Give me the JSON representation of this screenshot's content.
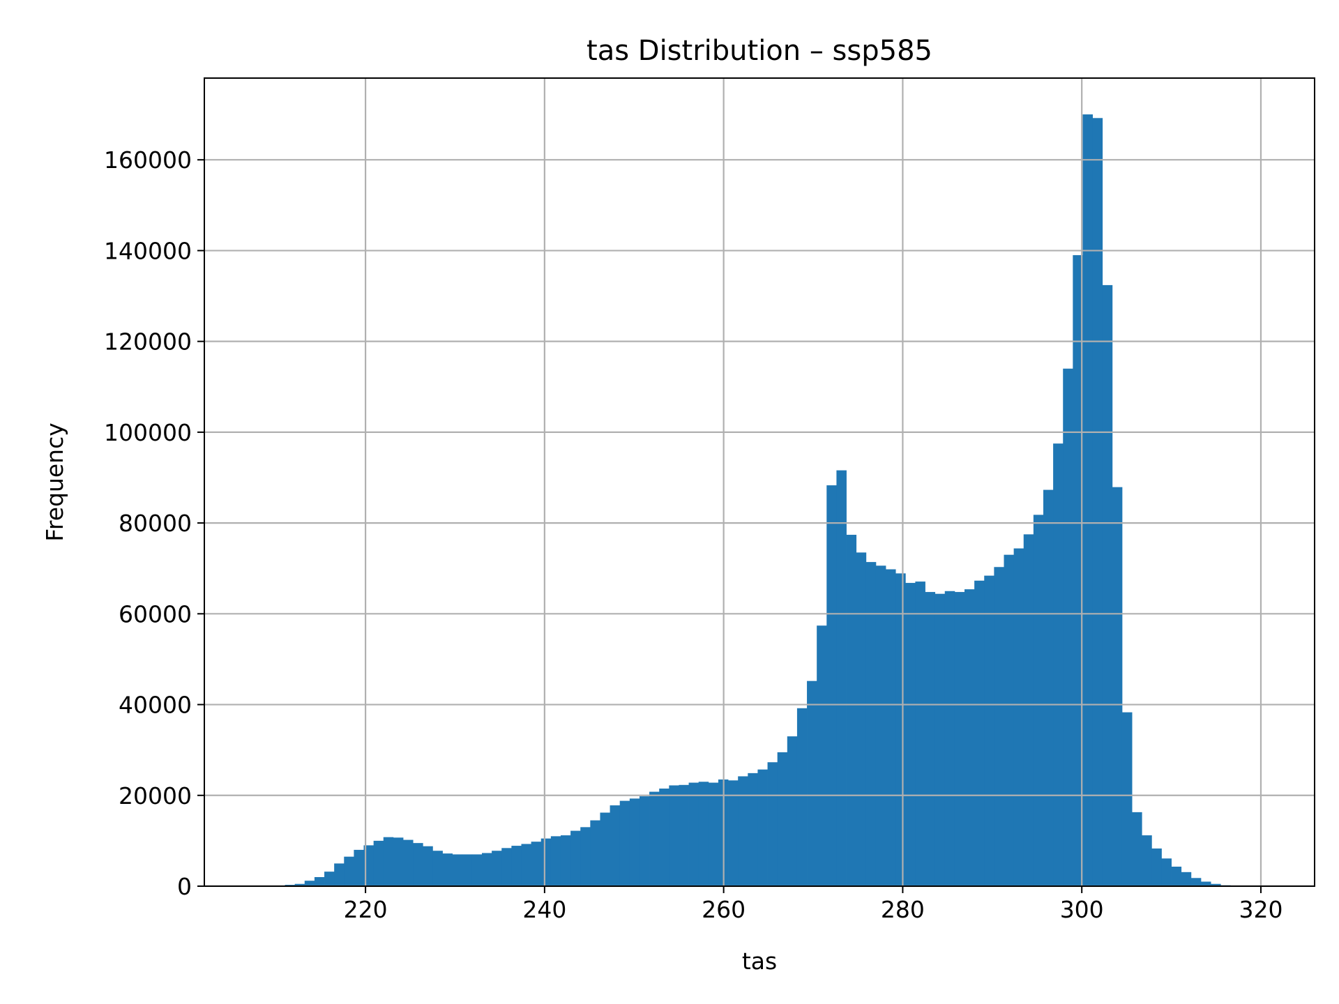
{
  "chart_data": {
    "type": "bar",
    "title": "tas Distribution – ssp585",
    "xlabel": "tas",
    "ylabel": "Frequency",
    "xlim": [
      202,
      326
    ],
    "ylim": [
      0,
      178000
    ],
    "xticks": [
      220,
      240,
      260,
      280,
      300,
      320
    ],
    "yticks": [
      0,
      20000,
      40000,
      60000,
      80000,
      100000,
      120000,
      140000,
      160000
    ],
    "grid": true,
    "bar_color": "#1f77b4",
    "bin_start": 211.0,
    "bin_width": 1.1,
    "values": [
      300,
      500,
      1200,
      2000,
      3200,
      5000,
      6500,
      8000,
      9000,
      10000,
      10800,
      10700,
      10200,
      9500,
      8800,
      7800,
      7200,
      7000,
      7000,
      7000,
      7300,
      7800,
      8400,
      8900,
      9300,
      9800,
      10500,
      11000,
      11200,
      12200,
      13000,
      14500,
      16200,
      17800,
      18800,
      19300,
      19800,
      20800,
      21500,
      22200,
      22300,
      22800,
      23000,
      22800,
      23500,
      23300,
      24200,
      24900,
      25700,
      27300,
      29500,
      33000,
      39200,
      45200,
      57400,
      88300,
      91600,
      77400,
      73500,
      71400,
      70600,
      69800,
      68900,
      66800,
      67100,
      64800,
      64400,
      65000,
      64800,
      65400,
      67300,
      68400,
      70300,
      73000,
      74400,
      77500,
      81800,
      87300,
      97500,
      114000,
      139000,
      170000,
      169200,
      132400,
      87900,
      38300,
      16300,
      11200,
      8300,
      6100,
      4300,
      3100,
      1800,
      1000,
      500,
      200
    ]
  }
}
